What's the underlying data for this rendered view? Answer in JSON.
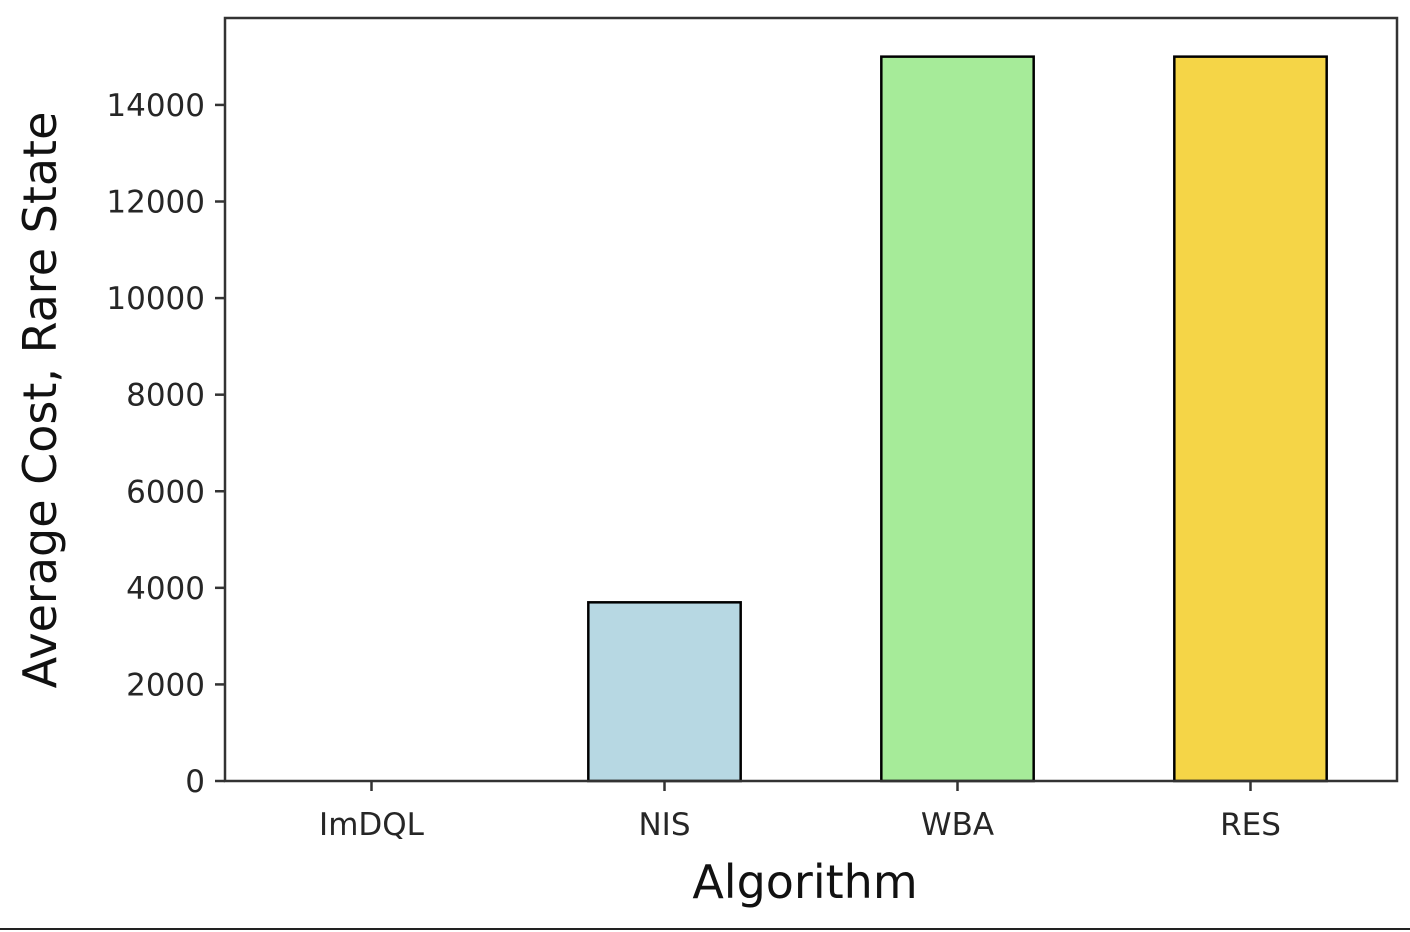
{
  "chart_data": {
    "type": "bar",
    "categories": [
      "ImDQL",
      "NIS",
      "WBA",
      "RES"
    ],
    "values": [
      0,
      3700,
      15000,
      15000
    ],
    "colors": [
      "#ffffff",
      "#b7d8e3",
      "#a6eb99",
      "#f5d547"
    ],
    "xlabel": "Algorithm",
    "ylabel": "Average Cost, Rare State",
    "ylim": [
      0,
      15800
    ],
    "yticks": [
      0,
      2000,
      4000,
      6000,
      8000,
      10000,
      12000,
      14000
    ],
    "ytick_labels": [
      "0",
      "2000",
      "4000",
      "6000",
      "8000",
      "10000",
      "12000",
      "14000"
    ],
    "grid": false,
    "legend": "none"
  }
}
